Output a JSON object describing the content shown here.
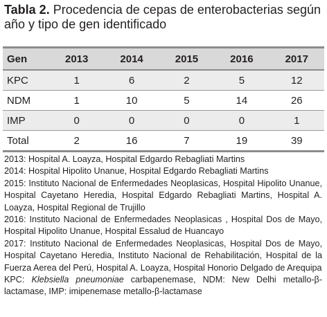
{
  "title": {
    "label": "Tabla 2.",
    "text": "Procedencia de cepas de enterobacterias según año y tipo de gen identificado"
  },
  "table": {
    "header": [
      "Gen",
      "2013",
      "2014",
      "2015",
      "2016",
      "2017"
    ],
    "rows": [
      [
        "KPC",
        1,
        6,
        2,
        5,
        12
      ],
      [
        "NDM",
        1,
        10,
        5,
        14,
        26
      ],
      [
        "IMP",
        0,
        0,
        0,
        0,
        1
      ],
      [
        "Total",
        2,
        16,
        7,
        19,
        39
      ]
    ]
  },
  "notes": [
    "2013: Hospital A. Loayza, Hospital Edgardo Rebagliati Martins",
    "2014: Hospital Hipolito Unanue, Hospital Edgardo Rebagliati Martins",
    "2015: Instituto Nacional de Enfermedades Neoplasicas, Hospital Hipolito Unanue, Hospital Cayetano Heredia, Hospital Edgardo Rebagliati Martins, Hospital A. Loayza, Hospital Regional de Trujillo",
    "2016: Instituto Nacional de Enfermedades Neoplasicas , Hospital Dos de Mayo, Hospital Hipolito Unanue, Hospital Essalud de Huancayo",
    "2017: Instituto Nacional de Enfermedades Neoplasicas, Hospital Dos de Mayo, Hospital Cayetano Heredia, Instituto Nacional de Rehabilitación, Hospital de la Fuerza Aerea del Perú, Hospital A. Loayza, Hospital Honorio Delgado de Arequipa"
  ],
  "abbrev": {
    "prefix": "KPC: ",
    "italic": "Klebsiella pneumoniae",
    "rest": " carbapenemase, NDM: New Delhi metallo-β-lactamase, IMP: imipenemase metallo-β-lactamase"
  }
}
